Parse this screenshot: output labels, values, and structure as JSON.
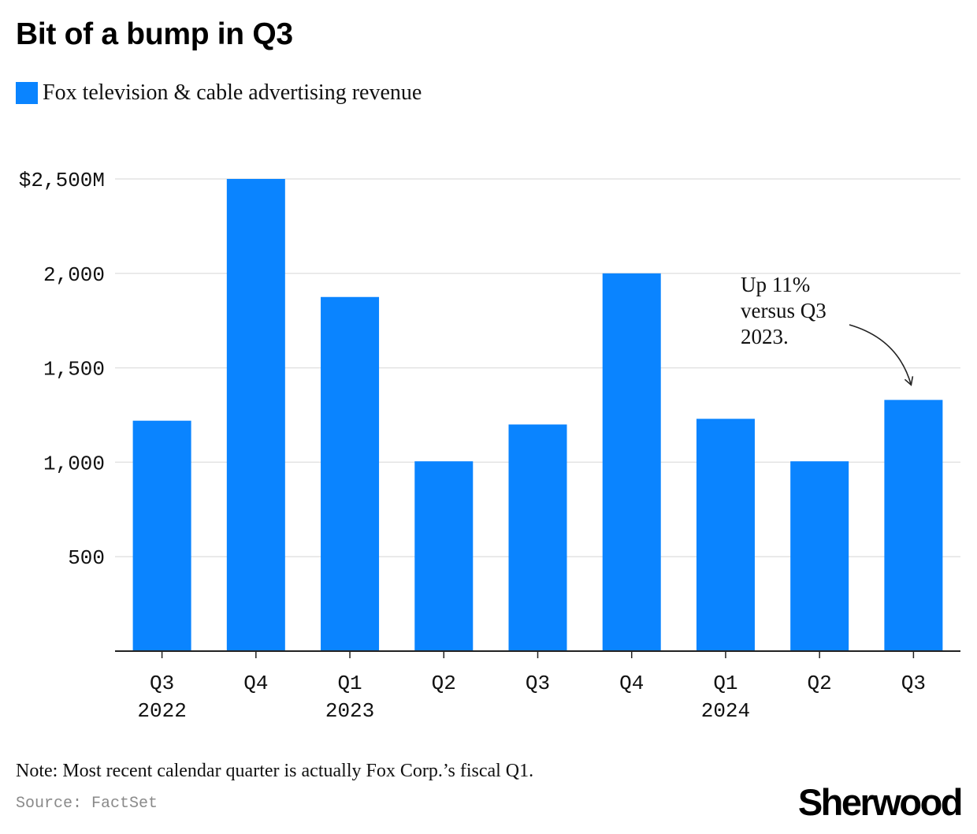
{
  "title": "Bit of a bump in Q3",
  "legend": {
    "label": "Fox television & cable advertising revenue",
    "color": "#0a84ff"
  },
  "note": "Note: Most recent calendar quarter is actually Fox Corp.’s fiscal Q1.",
  "source": "Source: FactSet",
  "brand": "Sherwood",
  "chart_data": {
    "type": "bar",
    "categories": [
      {
        "quarter": "Q3",
        "year": "2022"
      },
      {
        "quarter": "Q4",
        "year": ""
      },
      {
        "quarter": "Q1",
        "year": "2023"
      },
      {
        "quarter": "Q2",
        "year": ""
      },
      {
        "quarter": "Q3",
        "year": ""
      },
      {
        "quarter": "Q4",
        "year": ""
      },
      {
        "quarter": "Q1",
        "year": "2024"
      },
      {
        "quarter": "Q2",
        "year": ""
      },
      {
        "quarter": "Q3",
        "year": ""
      }
    ],
    "series": [
      {
        "name": "Fox television & cable advertising revenue",
        "color": "#0a84ff",
        "values": [
          1220,
          2500,
          1875,
          1005,
          1200,
          2000,
          1230,
          1005,
          1330
        ]
      }
    ],
    "ylim": [
      0,
      2500
    ],
    "yticks": [
      {
        "value": 500,
        "label": "500"
      },
      {
        "value": 1000,
        "label": "1,000"
      },
      {
        "value": 1500,
        "label": "1,500"
      },
      {
        "value": 2000,
        "label": "2,000"
      },
      {
        "value": 2500,
        "label": "$2,500M"
      }
    ],
    "grid": true,
    "annotation": {
      "lines": [
        "Up 11%",
        "versus Q3",
        "2023."
      ],
      "target_index": 8
    }
  }
}
